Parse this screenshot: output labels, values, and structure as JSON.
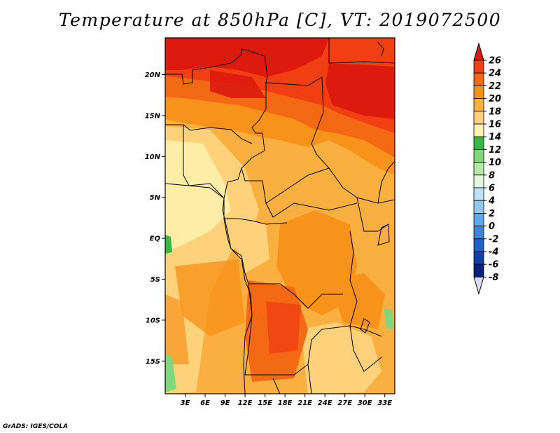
{
  "title": "Temperature at 850hPa [C], VT: 2019072500",
  "credit": "GrADS: IGES/COLA",
  "map": {
    "lon_range": [
      0,
      34.5
    ],
    "lat_range": [
      -19,
      24.5
    ],
    "lat_ticks": [
      {
        "value": 20,
        "label": "20N"
      },
      {
        "value": 15,
        "label": "15N"
      },
      {
        "value": 10,
        "label": "10N"
      },
      {
        "value": 5,
        "label": "5N"
      },
      {
        "value": 0,
        "label": "EQ"
      },
      {
        "value": -5,
        "label": "5S"
      },
      {
        "value": -10,
        "label": "10S"
      },
      {
        "value": -15,
        "label": "15S"
      }
    ],
    "lon_ticks": [
      {
        "value": 3,
        "label": "3E"
      },
      {
        "value": 6,
        "label": "6E"
      },
      {
        "value": 9,
        "label": "9E"
      },
      {
        "value": 12,
        "label": "12E"
      },
      {
        "value": 15,
        "label": "15E"
      },
      {
        "value": 18,
        "label": "18E"
      },
      {
        "value": 21,
        "label": "21E"
      },
      {
        "value": 24,
        "label": "24E"
      },
      {
        "value": 27,
        "label": "27E"
      },
      {
        "value": 30,
        "label": "30E"
      },
      {
        "value": 33,
        "label": "33E"
      }
    ]
  },
  "colorbar": {
    "labels": [
      "26",
      "24",
      "22",
      "20",
      "18",
      "16",
      "14",
      "12",
      "10",
      "8",
      "6",
      "4",
      "2",
      "0",
      "-2",
      "-4",
      "-6",
      "-8"
    ],
    "colors": [
      "#dd1a0e",
      "#f03f12",
      "#f46a14",
      "#f7921b",
      "#f9b040",
      "#fdd27a",
      "#fef2ae",
      "#33bb44",
      "#7ed77a",
      "#b4eba8",
      "#e2f6e0",
      "#bfe2fa",
      "#8fc8f4",
      "#5ea8ec",
      "#3a86e0",
      "#1d62cb",
      "#0e3fa4",
      "#082080",
      "#040860",
      "#d8dcf8"
    ]
  }
}
